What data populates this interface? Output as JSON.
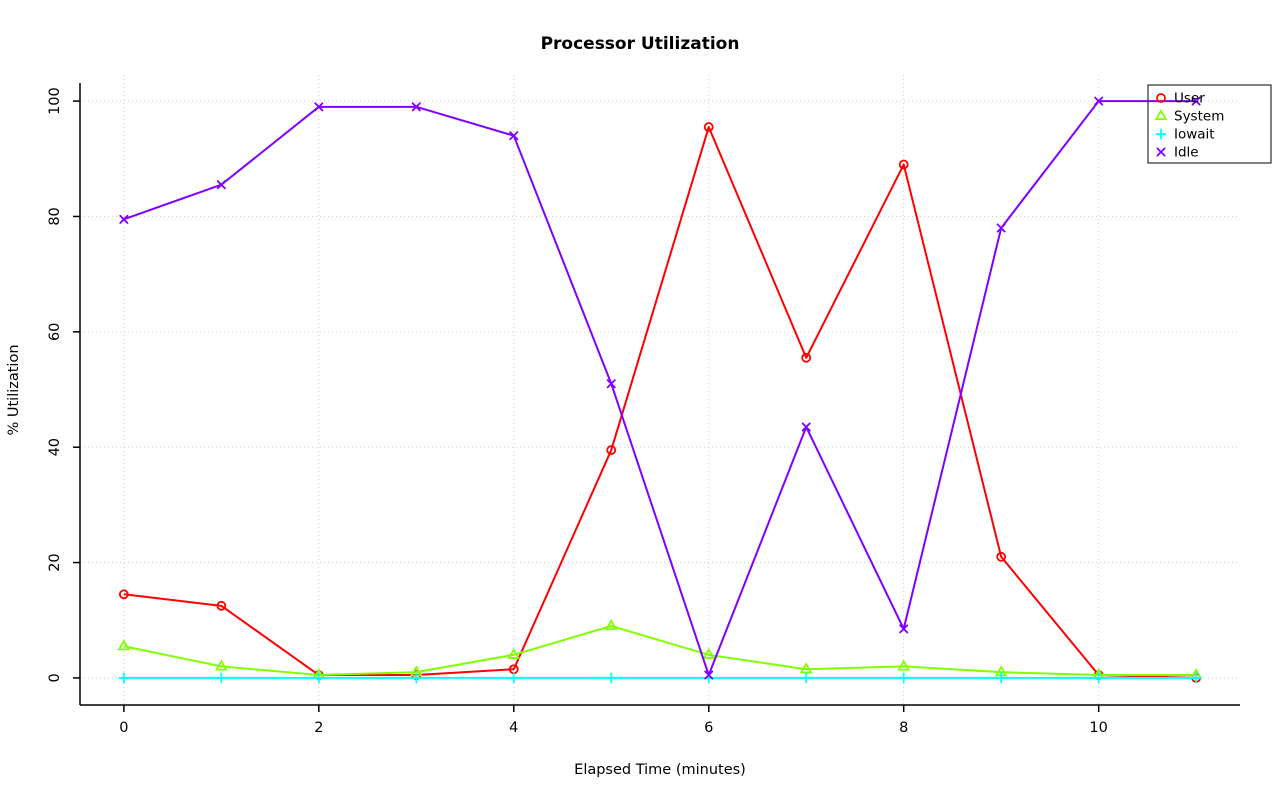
{
  "chart_data": {
    "type": "line",
    "title": "Processor Utilization",
    "xlabel": "Elapsed Time (minutes)",
    "ylabel": "% Utilization",
    "x": [
      0,
      1,
      2,
      3,
      4,
      5,
      6,
      7,
      8,
      9,
      10,
      11
    ],
    "xlim": [
      -0.45,
      11.45
    ],
    "ylim": [
      -4,
      104
    ],
    "x_ticks": [
      0,
      2,
      4,
      6,
      8,
      10
    ],
    "y_ticks": [
      0,
      20,
      40,
      60,
      80,
      100
    ],
    "grid": true,
    "grid_style": "dotted",
    "legend_position": "top-right",
    "axis_color": "#000000",
    "grid_color": "#cdcdcd",
    "series": [
      {
        "name": "User",
        "color": "#FF0000",
        "marker": "circle",
        "values": [
          14.5,
          12.5,
          0.5,
          0.5,
          1.5,
          39.5,
          95.5,
          55.5,
          89,
          21,
          0.5,
          0
        ]
      },
      {
        "name": "System",
        "color": "#80FF00",
        "marker": "triangle",
        "values": [
          5.5,
          2,
          0.5,
          1,
          4,
          9,
          4,
          1.5,
          2,
          1,
          0.5,
          0.5
        ]
      },
      {
        "name": "Iowait",
        "color": "#00FFFF",
        "marker": "plus",
        "values": [
          0,
          0,
          0,
          0,
          0,
          0,
          0,
          0,
          0,
          0,
          0,
          0
        ]
      },
      {
        "name": "Idle",
        "color": "#8000FF",
        "marker": "x",
        "values": [
          79.5,
          85.5,
          99,
          99,
          94,
          51,
          0.5,
          43.5,
          8.5,
          78,
          100,
          100
        ]
      }
    ]
  }
}
